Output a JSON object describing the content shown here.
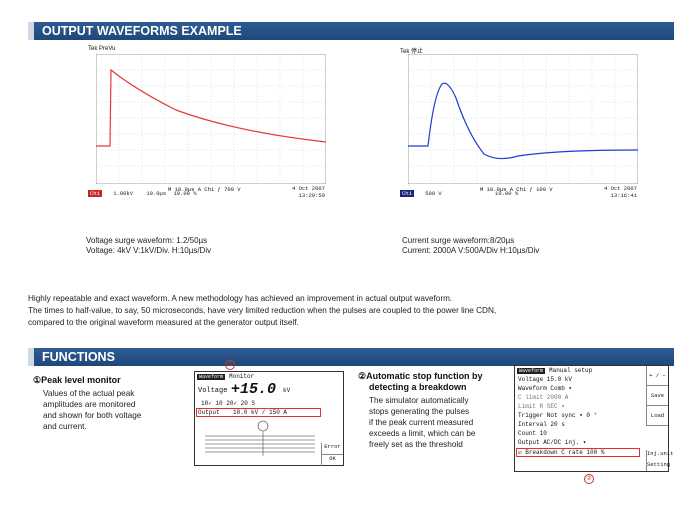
{
  "sections": {
    "output_title": "OUTPUT WAVEFORMS EXAMPLE",
    "functions_title": "FUNCTIONS"
  },
  "scope1": {
    "brand": "Tek PreVu",
    "bottom_left": "M 10.0µs  A  Ch1 ƒ    700 V",
    "channel": "Ch1",
    "scale": "1.00kV",
    "time": "10.0µs",
    "trigger": "10.00 %",
    "date": "4 Oct  2007",
    "clock": "13:29:59",
    "caption_1": "Voltage surge waveform: 1.2/50µs",
    "caption_2": "Voltage: 4kV  V:1kV/Div.  H:10µs/Div"
  },
  "scope2": {
    "brand": "Tek 停止",
    "bottom_left": "M 10.0µs  A  Ch1 ƒ    100 V",
    "channel": "Ch1",
    "scale": "500 V",
    "trigger": "10.00 %",
    "date": "4 Oct  2007",
    "clock": "13:16:41",
    "caption_1": "Current surge waveform:8/20µs",
    "caption_2": "Current: 2000A  V:500A/Div  H:10µs/Div"
  },
  "paragraph": {
    "line1": "Highly repeatable and exact waveform. A new methodology has achieved an improvement in actual output waveform.",
    "line2": "The times to half-value, to say, 50 microseconds, have very limited reduction when the pulses are coupled to the power line CDN,",
    "line3": "compared to the original waveform measured at the generator output itself."
  },
  "fn1": {
    "title": "①Peak level monitor",
    "body1": "Values of the actual peak",
    "body2": "amplitudes are monitored",
    "body3": "and shown for both voltage",
    "body4": "and current.",
    "marker": "①",
    "lcd": {
      "tag": "Waveform",
      "mode": "Monitor",
      "voltage_label": "Voltage",
      "voltage_value": "+15.0",
      "voltage_unit": "kV",
      "row2": "10✓    10     20✓   20 S",
      "output_label": "Output",
      "output_value": "10.0 kV /    150 A",
      "error_btn": "Error",
      "ok_btn": "OK"
    }
  },
  "fn2": {
    "title1": "②Automatic stop function by",
    "title2": "detecting a breakdown",
    "body1": "The simulator automatically",
    "body2": "stops generating the pulses",
    "body3": "if the peak current measured",
    "body4": "exceeds a limit, which can be",
    "body5": "freely set as the threshold",
    "marker": "②",
    "lcd": {
      "tag": "Waveform",
      "mode": "Manual setup",
      "rows": [
        "Voltage   15.0 kV",
        "Waveform  Comb     ▾",
        "C limit   2000 A",
        "Limit R   SEC      ▾",
        "Trigger   Not sync ▾   0 °",
        "Interval   20 s",
        "Count      10",
        "Output    AC/DC inj.   ▾"
      ],
      "breakdown": "☑ Breakdown        C rate 100 %",
      "btn_plusminus": "+ / −",
      "btn_save": "Save",
      "btn_load": "Load",
      "btn_inj": "Inj.unit",
      "btn_setting": "Setting"
    }
  },
  "colors": {
    "bar": "#1f4779",
    "voltage_trace": "#e53935",
    "current_trace": "#1a3fd1"
  }
}
